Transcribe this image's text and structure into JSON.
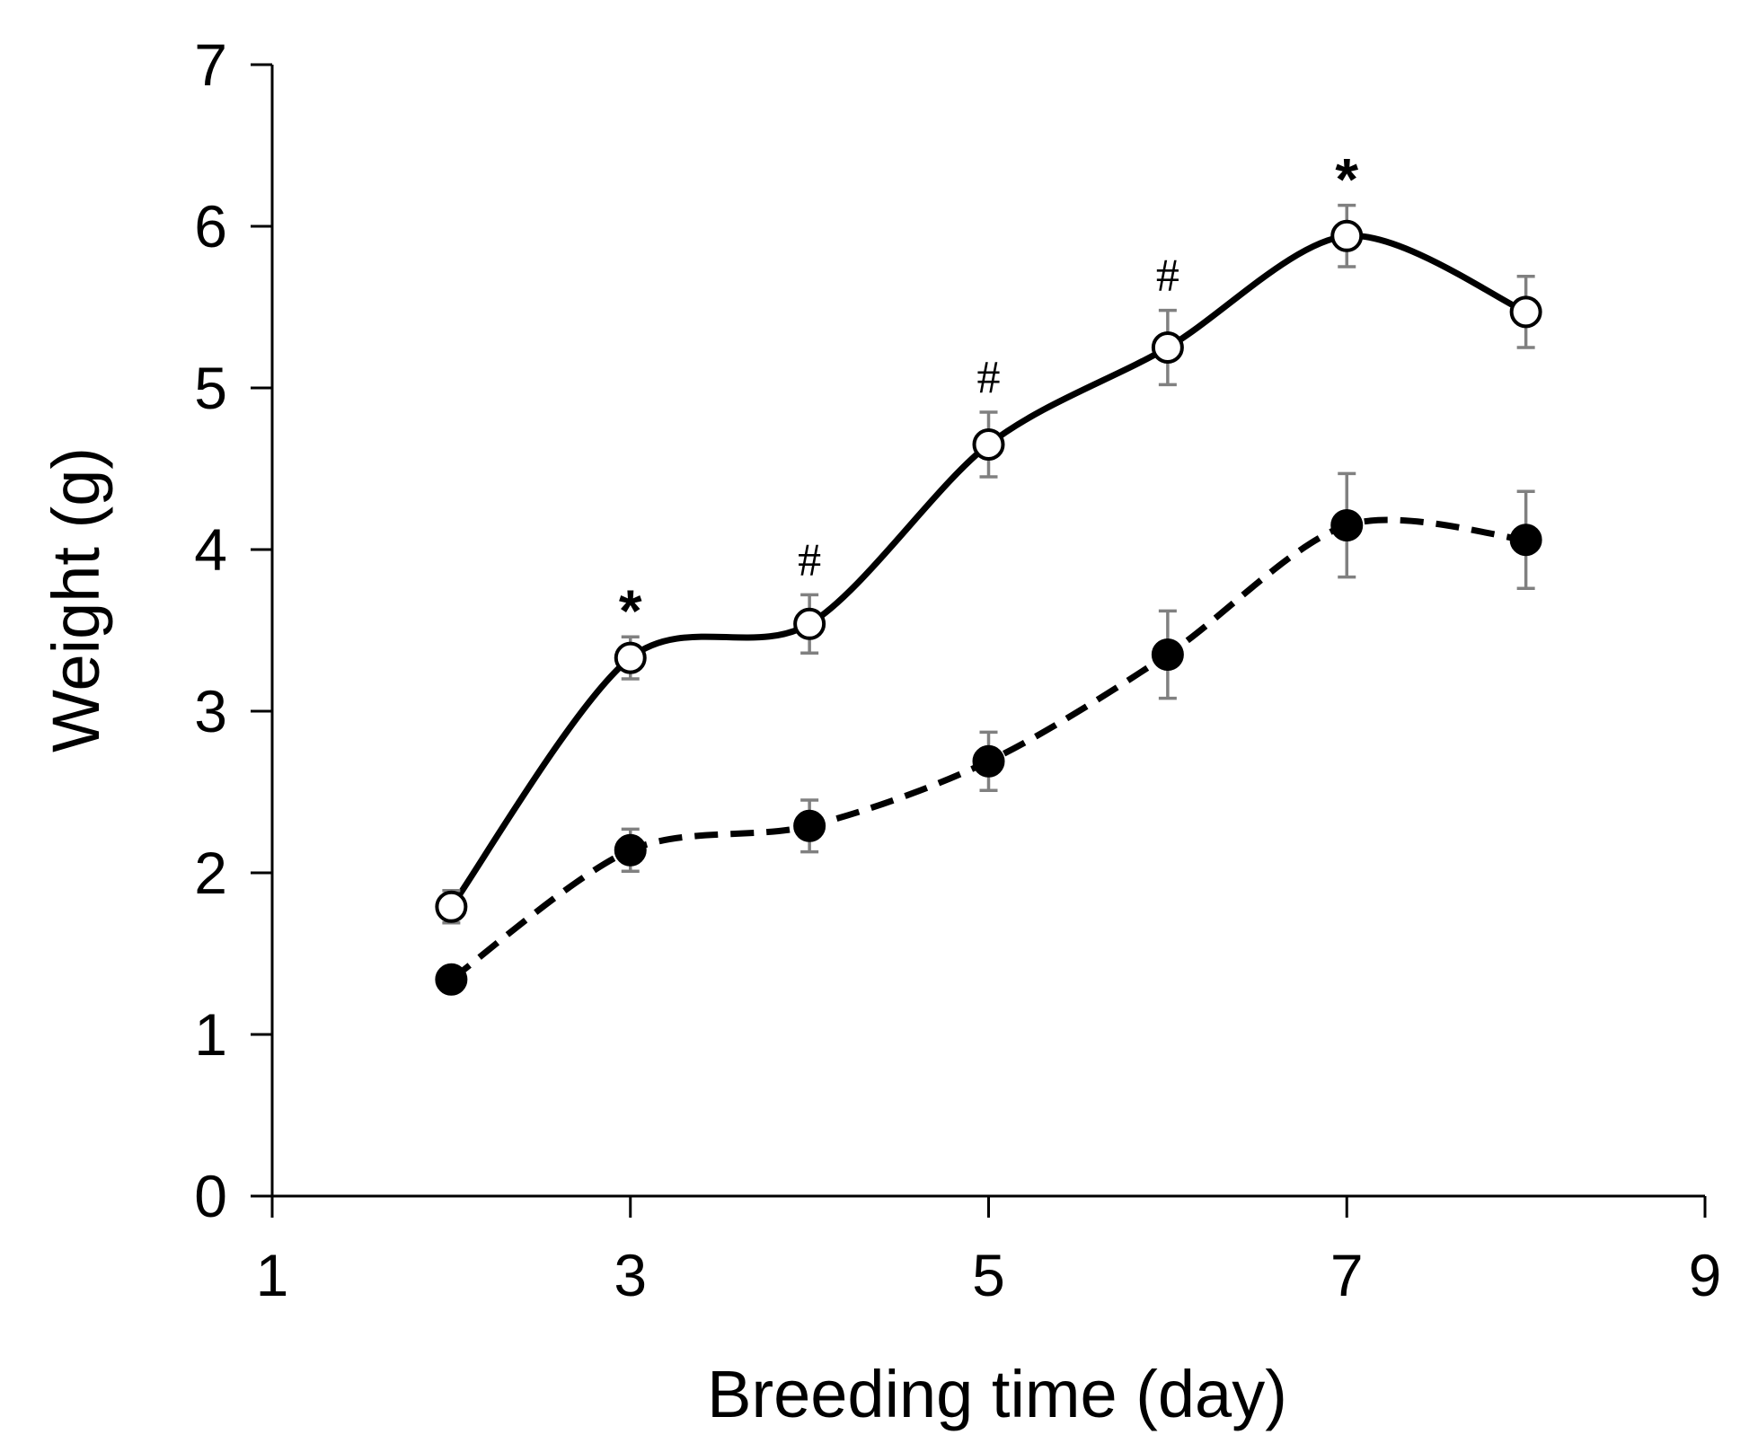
{
  "chart_data": {
    "type": "line",
    "xlabel": "Breeding time (day)",
    "ylabel": "Weight (g)",
    "xlim": [
      1,
      9
    ],
    "ylim": [
      0,
      7
    ],
    "xticks": [
      1,
      3,
      5,
      7,
      9
    ],
    "yticks": [
      0,
      1,
      2,
      3,
      4,
      5,
      6,
      7
    ],
    "grid": false,
    "series": [
      {
        "style": "solid-line-open-circle",
        "color": "#000000",
        "x": [
          2,
          3,
          4,
          5,
          6,
          7,
          8
        ],
        "y": [
          1.79,
          3.33,
          3.54,
          4.65,
          5.25,
          5.94,
          5.47
        ],
        "error": [
          0.1,
          0.13,
          0.18,
          0.2,
          0.23,
          0.19,
          0.22
        ]
      },
      {
        "style": "dashed-line-filled-circle",
        "color": "#000000",
        "x": [
          2,
          3,
          4,
          5,
          6,
          7,
          8
        ],
        "y": [
          1.34,
          2.14,
          2.29,
          2.69,
          3.35,
          4.15,
          4.06
        ],
        "error": [
          0.0,
          0.13,
          0.16,
          0.18,
          0.27,
          0.32,
          0.3
        ]
      }
    ],
    "annotations": [
      {
        "x": 3,
        "text": "*"
      },
      {
        "x": 4,
        "text": "#"
      },
      {
        "x": 5,
        "text": "#"
      },
      {
        "x": 6,
        "text": "#"
      },
      {
        "x": 7,
        "text": "*"
      }
    ],
    "error_bar_color": "#808080"
  }
}
